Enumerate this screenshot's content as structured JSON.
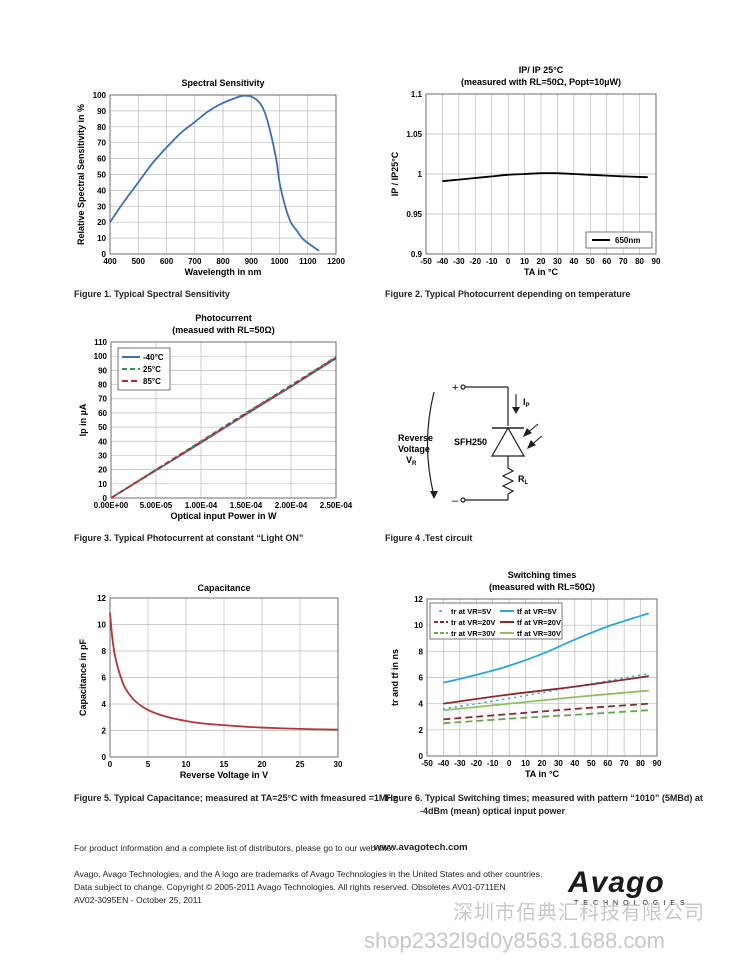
{
  "figures": [
    {
      "id": "fig1",
      "caption": "Figure 1. Typical Spectral Sensitivity",
      "chart_data": {
        "type": "line",
        "title": "Spectral Sensitivity",
        "subtitle": "",
        "xlabel": "Wavelength in nm",
        "ylabel": "Relative Spectral Sensitivity in %",
        "xlim": [
          400,
          1200
        ],
        "ylim": [
          0,
          100
        ],
        "xticks": [
          "400",
          "500",
          "600",
          "700",
          "800",
          "900",
          "1000",
          "1100",
          "1200"
        ],
        "yticks": [
          "0",
          "10",
          "20",
          "30",
          "40",
          "50",
          "60",
          "70",
          "80",
          "90",
          "100"
        ],
        "grid": true,
        "series": [
          {
            "name": "",
            "color": "#3d6fb6",
            "x": [
              400,
              450,
              500,
              550,
              600,
              650,
              700,
              750,
              800,
              850,
              870,
              900,
              930,
              950,
              970,
              990,
              1000,
              1020,
              1040,
              1060,
              1080,
              1100,
              1140
            ],
            "y": [
              20,
              33,
              45,
              57,
              67,
              76,
              83,
              90,
              95,
              98.5,
              99.5,
              99,
              95,
              88,
              75,
              58,
              45,
              30,
              20,
              15,
              10,
              7,
              2
            ]
          }
        ]
      }
    },
    {
      "id": "fig2",
      "caption": "Figure 2. Typical Photocurrent depending on temperature",
      "chart_data": {
        "type": "line",
        "title": "IP/ IP 25°C",
        "subtitle": "(measured with RL=50Ω, Popt=10µW)",
        "xlabel": "TA in °C",
        "ylabel": "IP / IP25°C",
        "xlim": [
          -50,
          90
        ],
        "ylim": [
          0.9,
          1.1
        ],
        "xticks": [
          "-50",
          "-40",
          "-30",
          "-20",
          "-10",
          "0",
          "10",
          "20",
          "30",
          "40",
          "50",
          "60",
          "70",
          "80",
          "90"
        ],
        "yticks": [
          "0.9",
          "0.95",
          "1",
          "1.05",
          "1.1"
        ],
        "grid": true,
        "legend_position": "bottom-right",
        "series": [
          {
            "name": "650nm",
            "color": "#000000",
            "x": [
              -40,
              -30,
              -20,
              -10,
              0,
              10,
              20,
              30,
              40,
              50,
              60,
              70,
              85
            ],
            "y": [
              0.991,
              0.993,
              0.995,
              0.997,
              0.999,
              1.0,
              1.001,
              1.001,
              1.0,
              0.999,
              0.998,
              0.997,
              0.996
            ]
          }
        ]
      }
    },
    {
      "id": "fig3",
      "caption": "Figure 3. Typical Photocurrent at constant “Light ON”",
      "chart_data": {
        "type": "line",
        "title": "Photocurrent",
        "subtitle": "(measued with RL=50Ω)",
        "xlabel": "Optical input Power in W",
        "ylabel": "Ip in µA",
        "xlim": [
          0,
          0.00025
        ],
        "ylim": [
          0,
          110
        ],
        "xticks": [
          "0.00E+00",
          "5.00E-05",
          "1.00E-04",
          "1.50E-04",
          "2.00E-04",
          "2.50E-04"
        ],
        "yticks": [
          "0",
          "10",
          "20",
          "30",
          "40",
          "50",
          "60",
          "70",
          "80",
          "90",
          "100",
          "110"
        ],
        "grid": true,
        "legend_position": "top-left",
        "series": [
          {
            "name": "-40°C",
            "color": "#3d6fb6",
            "dash": "",
            "x": [
              0,
              5e-05,
              0.0001,
              0.00015,
              0.0002,
              0.00025
            ],
            "y": [
              0,
              19.5,
              39,
              59,
              78.5,
              98.5
            ]
          },
          {
            "name": "25°C",
            "color": "#2e9a4a",
            "dash": "5,3",
            "x": [
              0,
              5e-05,
              0.0001,
              0.00015,
              0.0002,
              0.00025
            ],
            "y": [
              0,
              20,
              40,
              60,
              79.5,
              99.5
            ]
          },
          {
            "name": "85°C",
            "color": "#c8252b",
            "dash": "6,3",
            "x": [
              0,
              5e-05,
              0.0001,
              0.00015,
              0.0002,
              0.00025
            ],
            "y": [
              0,
              19.8,
              39.5,
              59.5,
              79,
              99
            ]
          }
        ]
      }
    },
    {
      "id": "fig5",
      "caption": "Figure 5. Typical Capacitance; measured at TA=25°C with fmeasured =1MHz",
      "chart_data": {
        "type": "line",
        "title": "Capacitance",
        "subtitle": "",
        "xlabel": "Reverse Voltage in V",
        "ylabel": "Capacitance in pF",
        "xlim": [
          0,
          30
        ],
        "ylim": [
          0,
          12
        ],
        "xticks": [
          "0",
          "5",
          "10",
          "15",
          "20",
          "25",
          "30"
        ],
        "yticks": [
          "0",
          "2",
          "4",
          "6",
          "8",
          "10",
          "12"
        ],
        "grid": true,
        "series": [
          {
            "name": "",
            "color": "#b8343a",
            "x": [
              0,
              0.3,
              0.6,
              1,
              1.5,
              2,
              3,
              4,
              5,
              6,
              8,
              10,
              12,
              15,
              18,
              20,
              25,
              30
            ],
            "y": [
              10.9,
              9.0,
              7.8,
              6.8,
              5.9,
              5.2,
              4.4,
              3.9,
              3.55,
              3.3,
              2.95,
              2.72,
              2.55,
              2.4,
              2.28,
              2.22,
              2.12,
              2.06
            ]
          }
        ]
      }
    },
    {
      "id": "fig6",
      "caption": "Figure 6. Typical Switching times; measured with pattern “1010” (5MBd) at",
      "caption2": "-4dBm (mean) optical input power",
      "chart_data": {
        "type": "line",
        "title": "Switching times",
        "subtitle": "(measured with RL=50Ω)",
        "xlabel": "TA in °C",
        "ylabel": "tr and tf in ns",
        "xlim": [
          -50,
          90
        ],
        "ylim": [
          0,
          12
        ],
        "xticks": [
          "-50",
          "-40",
          "-30",
          "-20",
          "-10",
          "0",
          "10",
          "20",
          "30",
          "40",
          "50",
          "60",
          "70",
          "80",
          "90"
        ],
        "yticks": [
          "0",
          "2",
          "4",
          "6",
          "8",
          "10",
          "12"
        ],
        "grid": true,
        "legend_position": "top-left",
        "series": [
          {
            "name": "tr at VR=5V",
            "color": "#4aa8dc",
            "dash": "1,5",
            "x": [
              -40,
              0,
              40,
              85
            ],
            "y": [
              3.6,
              4.4,
              5.3,
              6.3
            ]
          },
          {
            "name": "tf at VR=5V",
            "color": "#2aa6e0",
            "dash": "",
            "x": [
              -40,
              -20,
              0,
              20,
              40,
              60,
              85
            ],
            "y": [
              5.6,
              6.2,
              6.9,
              7.8,
              8.9,
              9.9,
              10.9
            ]
          },
          {
            "name": "tr at VR=20V",
            "color": "#8a2a2a",
            "dash": "7,4",
            "x": [
              -40,
              0,
              40,
              85
            ],
            "y": [
              2.8,
              3.2,
              3.6,
              4.0
            ]
          },
          {
            "name": "tf at VR=20V",
            "color": "#8a2a2a",
            "dash": "",
            "x": [
              -40,
              0,
              40,
              85
            ],
            "y": [
              4.0,
              4.7,
              5.3,
              6.1
            ]
          },
          {
            "name": "tr at VR=30V",
            "color": "#6aa84f",
            "dash": "7,4",
            "x": [
              -40,
              0,
              40,
              85
            ],
            "y": [
              2.5,
              2.85,
              3.15,
              3.5
            ]
          },
          {
            "name": "tf at VR=30V",
            "color": "#8fc25d",
            "dash": "",
            "x": [
              -40,
              0,
              40,
              85
            ],
            "y": [
              3.5,
              4.0,
              4.5,
              5.0
            ]
          }
        ]
      }
    }
  ],
  "fig4": {
    "caption": "Figure 4 .Test circuit",
    "plus": "+",
    "minus": "–",
    "label_reverse": "Reverse",
    "label_voltage": "Voltage",
    "label_v": "V",
    "label_v_sub": "R",
    "device": "SFH250",
    "label_ip": "I",
    "label_ip_sub": "P",
    "label_rl": "R",
    "label_rl_sub": "L"
  },
  "footer": {
    "info": "For product information and a complete list of distributors, please go to our web site:",
    "url": "www.avagotech.com",
    "line1": "Avago, Avago Technologies, and the A logo are trademarks of Avago Technologies in the United States and other countries.",
    "line2": "Data subject to change.  Copyright © 2005-2011 Avago Technologies. All rights reserved.  Obsoletes AV01-0711EN",
    "line3": "AV02-3095EN  -  October 25, 2011",
    "logo": "Avago",
    "logo_sub": "TECHNOLOGIES",
    "watermark1": "深圳市佰典汇科技有限公司",
    "watermark2": "shop2332l9d0y8563.1688.com"
  }
}
